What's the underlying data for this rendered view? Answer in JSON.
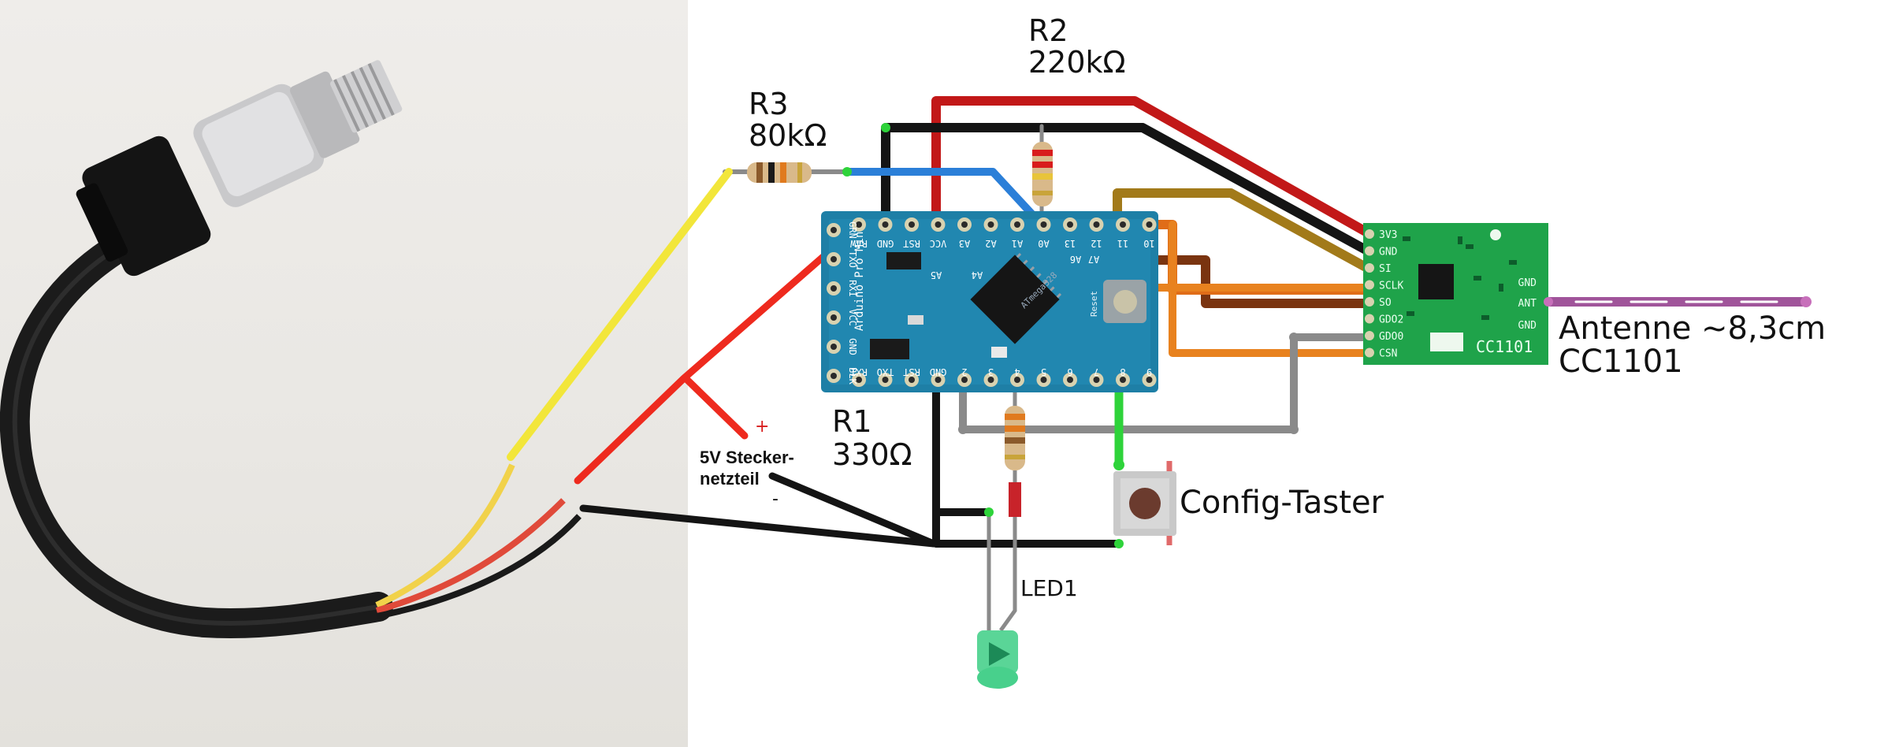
{
  "labels": {
    "r2_name": "R2",
    "r2_value": "220kΩ",
    "r3_name": "R3",
    "r3_value": "80kΩ",
    "r1_name": "R1",
    "r1_value": "330Ω",
    "psu_line1": "5V Stecker-",
    "psu_line2": "netzteil",
    "psu_plus": "+",
    "psu_minus": "-",
    "button": "Config-Taster",
    "led": "LED1",
    "antenna": "Antenne ~8,3cm",
    "module": "CC1101",
    "module_silk": "CC1101"
  },
  "arduino": {
    "board_text": "Arduino Pro Mini",
    "chip_text": "ATmega328",
    "reset_text": "Reset",
    "top_pins": [
      "RAW",
      "GND",
      "RST",
      "VCC",
      "A3",
      "A2",
      "A1",
      "A0",
      "13",
      "12",
      "11",
      "10"
    ],
    "bottom_pins": [
      "RXI",
      "TXO",
      "RST",
      "GND",
      "2",
      "3",
      "4",
      "5",
      "6",
      "7",
      "8",
      "9"
    ],
    "left_pins": [
      "GRN",
      "TXO",
      "RXI",
      "VCC",
      "GND",
      "BLK"
    ],
    "mid_labels": [
      "A4",
      "A5",
      "A7",
      "A6"
    ]
  },
  "cc1101": {
    "left_pins": [
      "3V3",
      "GND",
      "SI",
      "SCLK",
      "SO",
      "GDO2",
      "GDO0",
      "CSN"
    ],
    "right_pins": [
      "GND",
      "ANT",
      "GND"
    ]
  },
  "colors": {
    "red": "#d81c1c",
    "black": "#141414",
    "blue": "#2b7fd8",
    "yellow": "#f2e63a",
    "orange": "#e87a1e",
    "brown": "#8b3a12",
    "gold": "#a8801f",
    "gray": "#8a8a8a",
    "green": "#2ed33a",
    "purple": "#a0549a",
    "board_blue": "#1e7fa6",
    "module_green": "#1fa34a"
  }
}
